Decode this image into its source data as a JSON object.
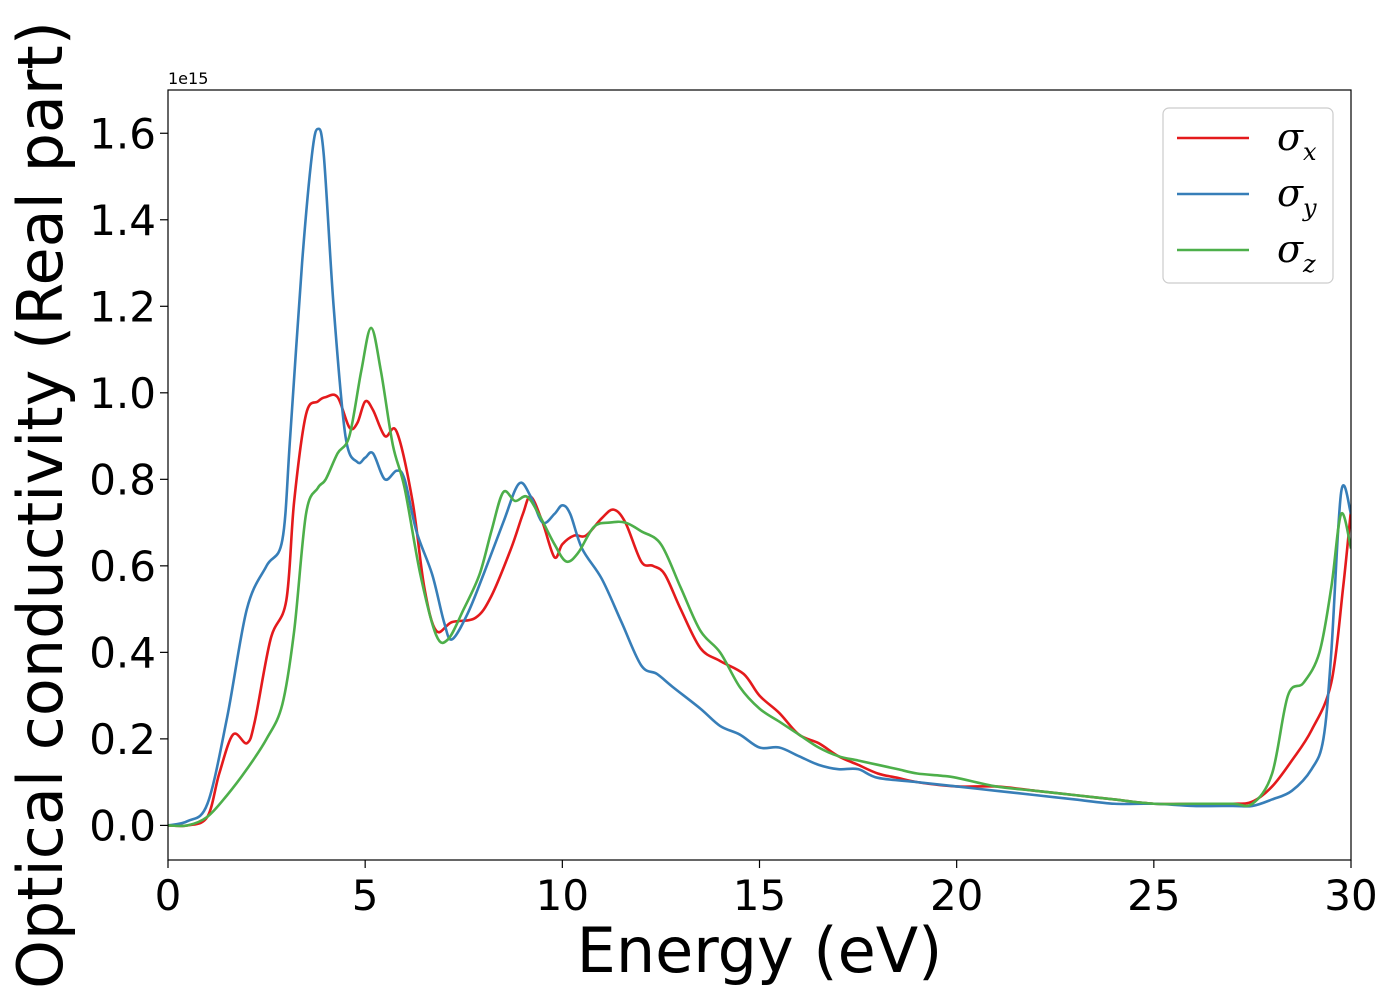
{
  "chart_data": {
    "type": "line",
    "title": "",
    "xlabel": "Energy (eV)",
    "ylabel": "Optical conductivity (Real part)",
    "offset_text": "1e15",
    "xlim": [
      0,
      30
    ],
    "ylim": [
      -0.08,
      1.7
    ],
    "xticks": [
      0,
      5,
      10,
      15,
      20,
      25,
      30
    ],
    "yticks": [
      0.0,
      0.2,
      0.4,
      0.6,
      0.8,
      1.0,
      1.2,
      1.4,
      1.6
    ],
    "grid": false,
    "legend_position": "top-right",
    "series": [
      {
        "name": "σ",
        "subscript": "x",
        "color": "#e41a1c",
        "x": [
          0,
          0.5,
          1.0,
          1.3,
          1.65,
          2.0,
          2.2,
          2.6,
          3.0,
          3.2,
          3.5,
          3.8,
          4.0,
          4.3,
          4.6,
          4.8,
          5.0,
          5.2,
          5.5,
          5.8,
          6.2,
          6.5,
          6.8,
          7.2,
          7.8,
          8.2,
          8.7,
          9.0,
          9.2,
          9.5,
          9.8,
          10.0,
          10.3,
          10.6,
          11.0,
          11.3,
          11.6,
          12.0,
          12.3,
          12.6,
          13.0,
          13.5,
          14.0,
          14.6,
          15.0,
          15.5,
          16.0,
          16.5,
          17.0,
          17.5,
          18.0,
          18.5,
          19.0,
          20.0,
          21.0,
          22.0,
          23.0,
          24.0,
          25.0,
          26.0,
          27.0,
          27.5,
          28.0,
          28.5,
          29.0,
          29.5,
          29.8,
          30.0
        ],
        "values": [
          0.0,
          0.0,
          0.02,
          0.12,
          0.21,
          0.19,
          0.24,
          0.43,
          0.52,
          0.75,
          0.95,
          0.98,
          0.99,
          0.99,
          0.92,
          0.93,
          0.98,
          0.96,
          0.9,
          0.91,
          0.75,
          0.55,
          0.45,
          0.47,
          0.48,
          0.53,
          0.64,
          0.72,
          0.76,
          0.7,
          0.62,
          0.65,
          0.67,
          0.67,
          0.71,
          0.73,
          0.7,
          0.61,
          0.6,
          0.58,
          0.5,
          0.41,
          0.38,
          0.35,
          0.3,
          0.26,
          0.21,
          0.19,
          0.16,
          0.14,
          0.12,
          0.11,
          0.1,
          0.09,
          0.09,
          0.08,
          0.07,
          0.06,
          0.05,
          0.05,
          0.05,
          0.055,
          0.09,
          0.15,
          0.22,
          0.33,
          0.55,
          0.73
        ]
      },
      {
        "name": "σ",
        "subscript": "y",
        "color": "#377eb8",
        "x": [
          0,
          0.5,
          1.0,
          1.5,
          2.0,
          2.5,
          2.9,
          3.1,
          3.4,
          3.65,
          3.8,
          3.95,
          4.2,
          4.5,
          4.8,
          5.0,
          5.2,
          5.5,
          5.8,
          6.0,
          6.3,
          6.7,
          7.0,
          7.2,
          7.6,
          8.0,
          8.5,
          8.9,
          9.2,
          9.5,
          9.8,
          10.0,
          10.2,
          10.5,
          11.0,
          11.5,
          12.0,
          12.4,
          12.8,
          13.5,
          14.0,
          14.5,
          15.0,
          15.5,
          16.0,
          16.5,
          17.0,
          17.5,
          18.0,
          19.0,
          20.0,
          21.0,
          22.0,
          23.0,
          24.0,
          25.0,
          26.0,
          27.0,
          27.5,
          28.0,
          28.5,
          29.0,
          29.3,
          29.5,
          29.75,
          30.0
        ],
        "values": [
          0.0,
          0.01,
          0.05,
          0.25,
          0.5,
          0.6,
          0.66,
          0.9,
          1.3,
          1.55,
          1.61,
          1.55,
          1.2,
          0.9,
          0.84,
          0.85,
          0.86,
          0.8,
          0.82,
          0.8,
          0.68,
          0.58,
          0.47,
          0.43,
          0.49,
          0.58,
          0.7,
          0.79,
          0.76,
          0.7,
          0.72,
          0.74,
          0.72,
          0.64,
          0.57,
          0.47,
          0.37,
          0.35,
          0.32,
          0.27,
          0.23,
          0.21,
          0.18,
          0.18,
          0.16,
          0.14,
          0.13,
          0.13,
          0.11,
          0.1,
          0.09,
          0.08,
          0.07,
          0.06,
          0.05,
          0.05,
          0.045,
          0.045,
          0.045,
          0.06,
          0.08,
          0.13,
          0.2,
          0.4,
          0.77,
          0.72
        ]
      },
      {
        "name": "σ",
        "subscript": "z",
        "color": "#4daf4a",
        "x": [
          0,
          0.5,
          1.0,
          1.5,
          2.0,
          2.5,
          2.9,
          3.2,
          3.5,
          3.8,
          4.0,
          4.3,
          4.6,
          4.9,
          5.15,
          5.4,
          5.7,
          6.0,
          6.4,
          6.8,
          7.1,
          7.5,
          7.9,
          8.2,
          8.5,
          8.8,
          9.1,
          9.4,
          9.8,
          10.1,
          10.4,
          10.8,
          11.2,
          11.6,
          12.0,
          12.5,
          13.0,
          13.5,
          14.0,
          14.5,
          15.0,
          15.5,
          16.0,
          16.5,
          17.0,
          17.5,
          18.0,
          18.5,
          19.0,
          19.6,
          20.0,
          21.0,
          22.0,
          23.0,
          24.0,
          25.0,
          26.0,
          27.0,
          27.5,
          28.0,
          28.4,
          28.8,
          29.2,
          29.5,
          29.75,
          30.0
        ],
        "values": [
          0.0,
          0.0,
          0.02,
          0.07,
          0.13,
          0.2,
          0.28,
          0.45,
          0.72,
          0.78,
          0.8,
          0.86,
          0.9,
          1.05,
          1.15,
          1.05,
          0.88,
          0.78,
          0.58,
          0.44,
          0.43,
          0.5,
          0.58,
          0.68,
          0.77,
          0.75,
          0.76,
          0.72,
          0.65,
          0.61,
          0.63,
          0.69,
          0.7,
          0.7,
          0.68,
          0.65,
          0.55,
          0.45,
          0.4,
          0.32,
          0.27,
          0.24,
          0.21,
          0.18,
          0.16,
          0.15,
          0.14,
          0.13,
          0.12,
          0.115,
          0.11,
          0.09,
          0.08,
          0.07,
          0.06,
          0.05,
          0.05,
          0.05,
          0.05,
          0.12,
          0.3,
          0.33,
          0.4,
          0.55,
          0.72,
          0.64
        ]
      }
    ]
  }
}
